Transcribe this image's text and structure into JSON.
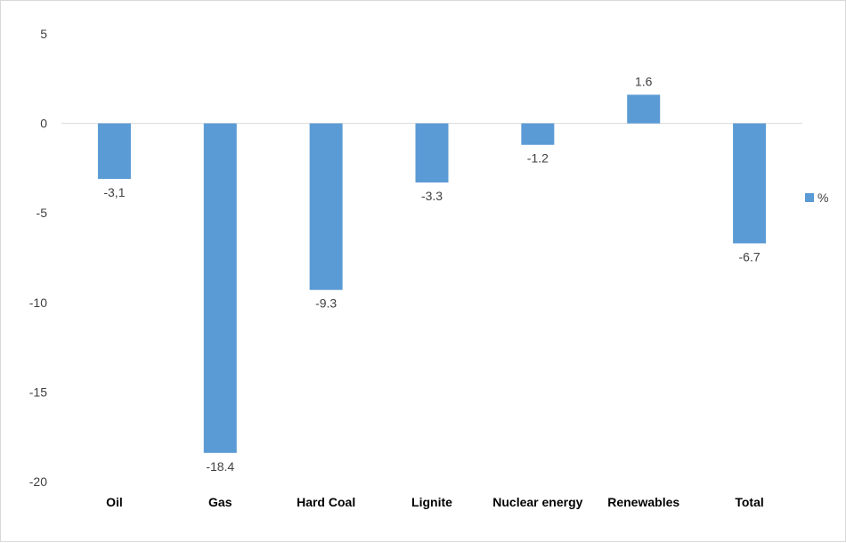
{
  "chart_data": {
    "type": "bar",
    "title": "",
    "xlabel": "",
    "ylabel": "",
    "ylim": [
      -20,
      5
    ],
    "yticks": [
      5,
      0,
      -5,
      -10,
      -15,
      -20
    ],
    "grid": false,
    "legend_position": "right",
    "categories": [
      "Oil",
      "Gas",
      "Hard Coal",
      "Lignite",
      "Nuclear energy",
      "Renewables",
      "Total"
    ],
    "series": [
      {
        "name": "%",
        "color": "#5B9BD5",
        "values": [
          -3.1,
          -18.4,
          -9.3,
          -3.3,
          -1.2,
          1.6,
          -6.7
        ],
        "labels": [
          "-3,1",
          "-18.4",
          "-9.3",
          "-3.3",
          "-1.2",
          "1.6",
          "-6.7"
        ]
      }
    ]
  }
}
